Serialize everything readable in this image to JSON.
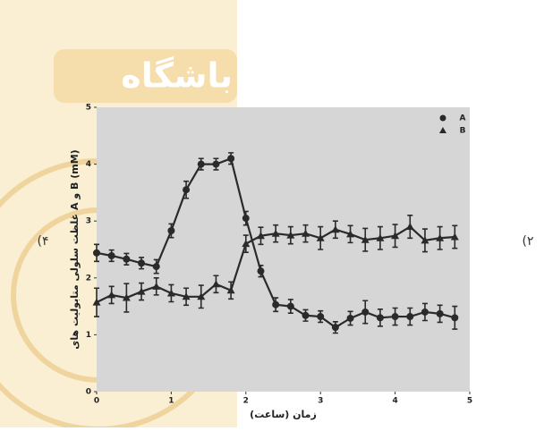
{
  "chart_data": {
    "type": "line",
    "x_label": "زمان (ساعت)",
    "y_label": "غلظت سلولی متابولیت های A و B (mM)",
    "x": [
      0,
      0.2,
      0.4,
      0.6,
      0.8,
      1.0,
      1.2,
      1.4,
      1.6,
      1.8,
      2.0,
      2.2,
      2.4,
      2.6,
      2.8,
      3.0,
      3.2,
      3.4,
      3.6,
      3.8,
      4.0,
      4.2,
      4.4,
      4.6,
      4.8
    ],
    "series": [
      {
        "name": "A",
        "marker": "circle",
        "color": "#2a2a2a",
        "values": [
          2.44,
          2.39,
          2.33,
          2.26,
          2.2,
          2.83,
          3.55,
          4.0,
          4.0,
          4.1,
          3.05,
          2.12,
          1.53,
          1.5,
          1.34,
          1.32,
          1.13,
          1.29,
          1.4,
          1.3,
          1.32,
          1.32,
          1.4,
          1.37,
          1.3
        ],
        "errors": [
          0.15,
          0.1,
          0.1,
          0.1,
          0.12,
          0.12,
          0.15,
          0.1,
          0.1,
          0.1,
          0.12,
          0.1,
          0.12,
          0.12,
          0.1,
          0.1,
          0.1,
          0.12,
          0.2,
          0.15,
          0.15,
          0.15,
          0.15,
          0.15,
          0.2
        ]
      },
      {
        "name": "B",
        "marker": "triangle",
        "color": "#2a2a2a",
        "values": [
          1.57,
          1.7,
          1.65,
          1.76,
          1.85,
          1.73,
          1.67,
          1.67,
          1.89,
          1.78,
          2.6,
          2.74,
          2.78,
          2.75,
          2.78,
          2.7,
          2.85,
          2.77,
          2.67,
          2.7,
          2.74,
          2.9,
          2.66,
          2.7,
          2.72
        ],
        "errors": [
          0.25,
          0.15,
          0.25,
          0.15,
          0.15,
          0.15,
          0.15,
          0.2,
          0.15,
          0.15,
          0.15,
          0.15,
          0.15,
          0.15,
          0.15,
          0.2,
          0.15,
          0.15,
          0.2,
          0.2,
          0.2,
          0.2,
          0.2,
          0.2,
          0.2
        ]
      }
    ],
    "xlim": [
      0,
      5
    ],
    "xticks": [
      0,
      1,
      2,
      3,
      4,
      5
    ],
    "ylim": [
      0,
      5
    ],
    "yticks": [
      0,
      1,
      2,
      3,
      4,
      5
    ],
    "plot_background": "#d6d6d6",
    "legend": "top-right"
  },
  "watermark": "باشگاه",
  "panel_labels": [
    "(۴",
    "(۲"
  ]
}
